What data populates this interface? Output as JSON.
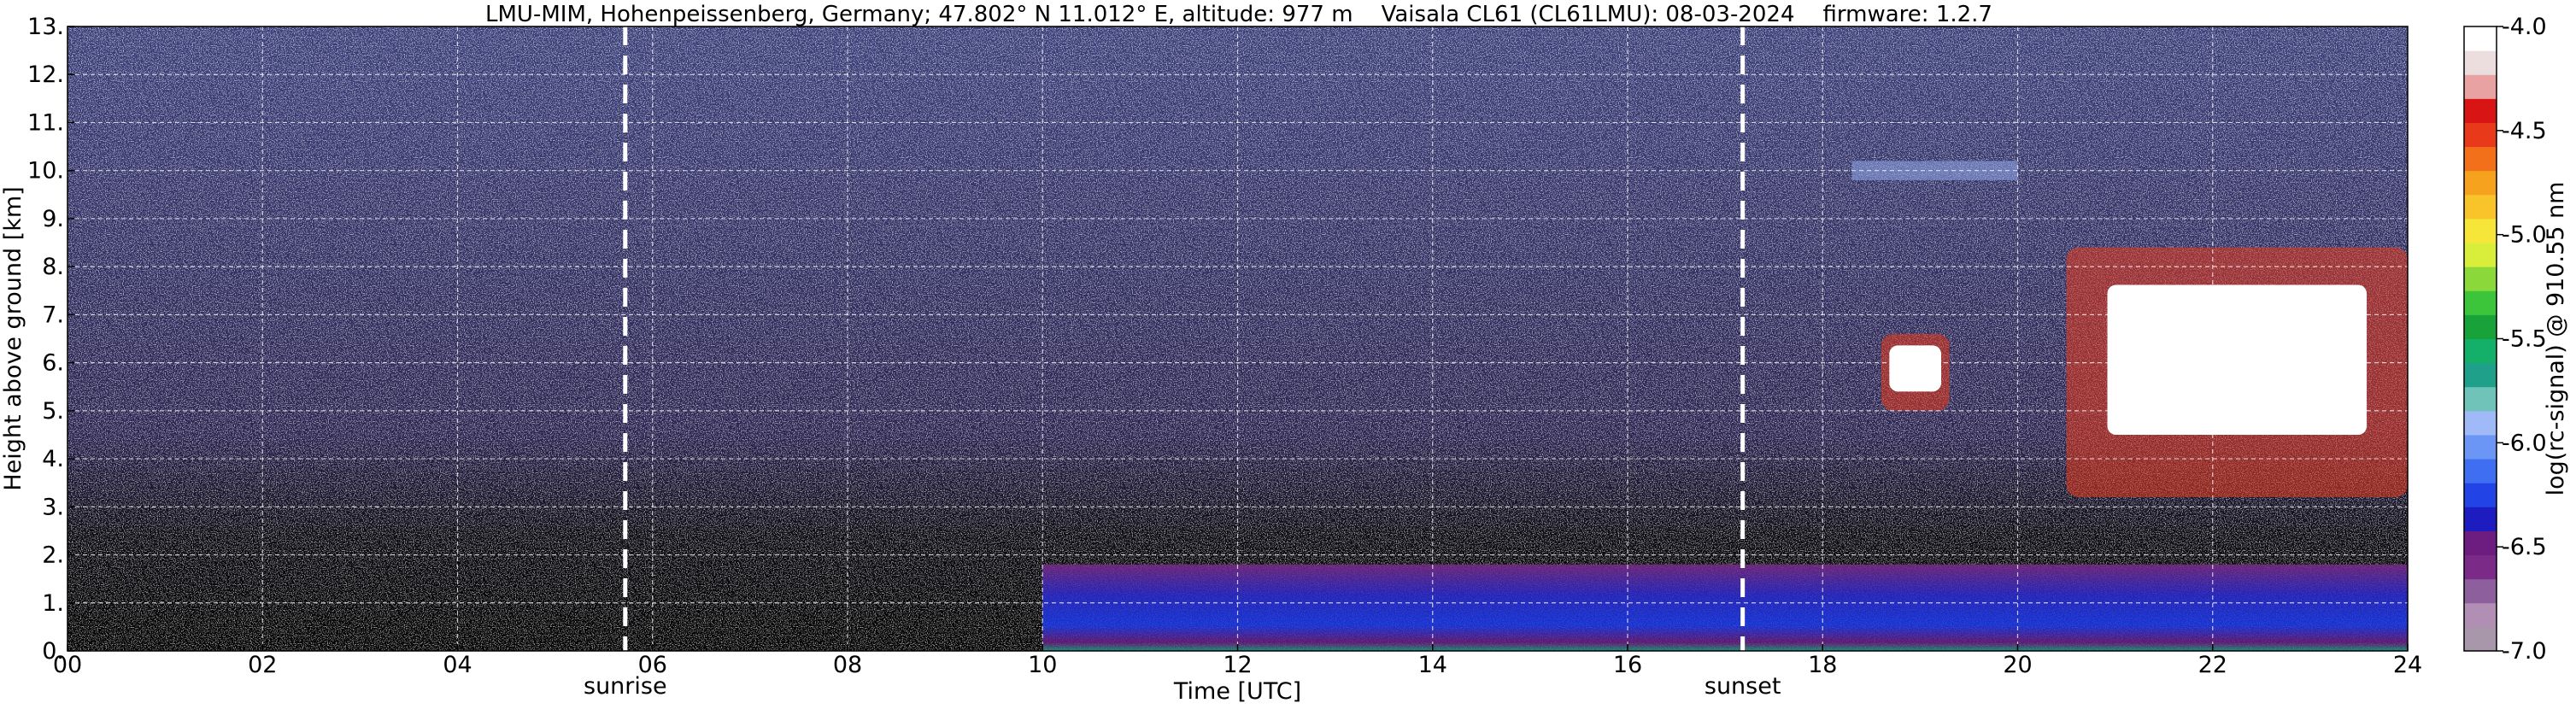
{
  "chart_data": {
    "type": "heatmap",
    "title": "LMU-MIM, Hohenpeissenberg, Germany; 47.802° N 11.012° E, altitude: 977 m    Vaisala CL61 (CL61LMU): 08-03-2024    firmware: 1.2.7",
    "xlabel": "Time [UTC]",
    "ylabel": "Height above ground [km]",
    "xlim": [
      0,
      24
    ],
    "ylim": [
      0,
      13
    ],
    "x_ticks": [
      0,
      2,
      4,
      6,
      8,
      10,
      12,
      14,
      16,
      18,
      20,
      22,
      24
    ],
    "x_tick_labels": [
      "00",
      "02",
      "04",
      "06",
      "08",
      "10",
      "12",
      "14",
      "16",
      "18",
      "20",
      "22",
      "24"
    ],
    "y_ticks": [
      0,
      1,
      2,
      3,
      4,
      5,
      6,
      7,
      8,
      9,
      10,
      11,
      12,
      13
    ],
    "y_tick_labels": [
      "0.",
      "1.",
      "2.",
      "3.",
      "4.",
      "5.",
      "6.",
      "7.",
      "8.",
      "9.",
      "10.",
      "11.",
      "12.",
      "13."
    ],
    "grid": true,
    "markers": [
      {
        "label": "sunrise",
        "x": 5.72
      },
      {
        "label": "sunset",
        "x": 17.18
      }
    ],
    "colorbar": {
      "label": "log(rc-signal) @ 910.55 nm",
      "range": [
        -7.0,
        -4.0
      ],
      "ticks": [
        -4.0,
        -4.5,
        -5.0,
        -5.5,
        -6.0,
        -6.5,
        -7.0
      ],
      "tick_labels": [
        "-4.0",
        "-4.5",
        "-5.0",
        "-5.5",
        "-6.0",
        "-6.5",
        "-7.0"
      ],
      "colors": [
        "#a896aa",
        "#b18fb5",
        "#8d5f9c",
        "#7b2a87",
        "#6d1d80",
        "#1c1cc0",
        "#2244e6",
        "#3f6ef2",
        "#6b96f5",
        "#a0b9f7",
        "#6fc3b8",
        "#1fa08a",
        "#14b06a",
        "#17a23a",
        "#3cc43a",
        "#8ad83a",
        "#d8ee3a",
        "#f7e63a",
        "#f9c42a",
        "#f7a21e",
        "#f2701a",
        "#e8391a",
        "#d81414",
        "#e8a2a2",
        "#ecdede",
        "#ffffff"
      ]
    },
    "features": [
      {
        "name": "boundary layer aerosol",
        "x": [
          10.0,
          24.0
        ],
        "y": [
          0.0,
          1.8
        ]
      },
      {
        "name": "cloud",
        "x": [
          18.6,
          19.3
        ],
        "y": [
          5.0,
          6.6
        ]
      },
      {
        "name": "cloud",
        "x": [
          20.5,
          24.0
        ],
        "y": [
          3.2,
          8.4
        ]
      },
      {
        "name": "thin layer",
        "x": [
          18.3,
          20.0
        ],
        "y": [
          9.8,
          10.2
        ]
      }
    ]
  }
}
